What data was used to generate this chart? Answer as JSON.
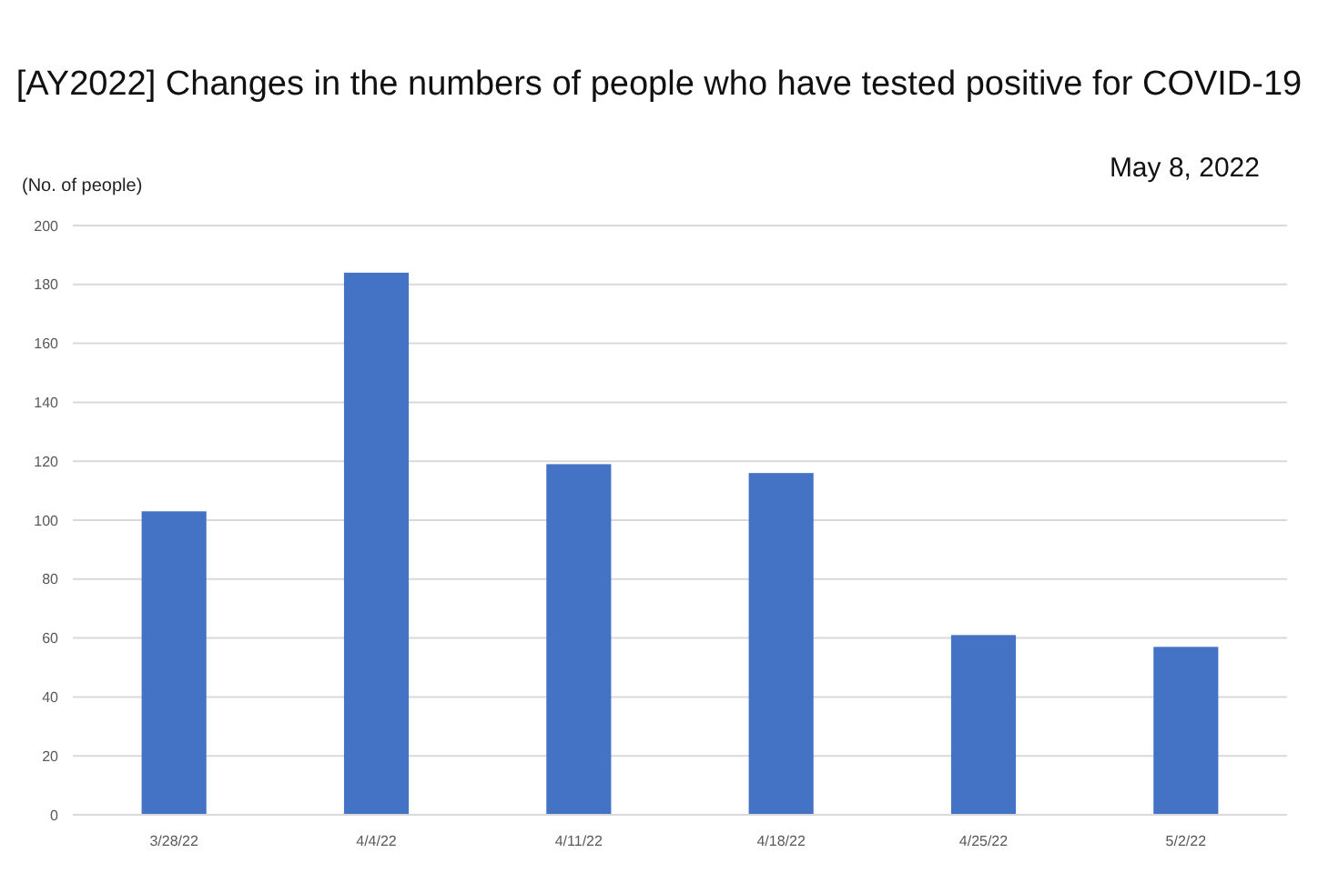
{
  "chart_data": {
    "type": "bar",
    "title": "[AY2022] Changes in the numbers of people who have tested positive for COVID-19",
    "subtitle": "May 8, 2022",
    "ylabel": "(No. of people)",
    "categories": [
      "3/28/22",
      "4/4/22",
      "4/11/22",
      "4/18/22",
      "4/25/22",
      "5/2/22"
    ],
    "values": [
      103,
      184,
      119,
      116,
      61,
      57
    ],
    "color": "#4472c4",
    "ylim": [
      0,
      200
    ],
    "yticks": [
      0,
      20,
      40,
      60,
      80,
      100,
      120,
      140,
      160,
      180,
      200
    ],
    "grid": "y"
  }
}
